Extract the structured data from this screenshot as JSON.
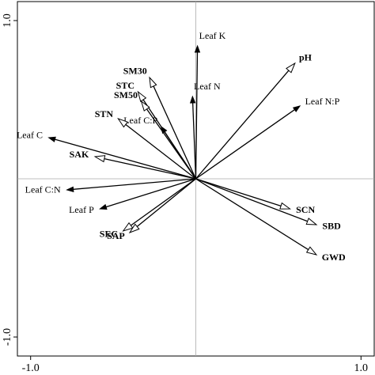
{
  "chart_data": {
    "type": "biplot",
    "xlim": [
      -1.08,
      1.08
    ],
    "ylim": [
      -1.12,
      1.12
    ],
    "xticks": [
      {
        "value": -1,
        "label": "-1.0"
      },
      {
        "value": 1,
        "label": "1.0"
      }
    ],
    "yticks": [
      {
        "value": -1,
        "label": "-1.0"
      },
      {
        "value": 1,
        "label": "1.0"
      }
    ],
    "zero_lines": true,
    "series": [
      {
        "arrowhead": "filled",
        "bold": false,
        "color": "#000000",
        "labels": [
          "Leaf K",
          "Leaf N:P",
          "Leaf N",
          "Leaf C:P",
          "Leaf C",
          "Leaf C:N",
          "Leaf P"
        ],
        "x": [
          0.01,
          0.63,
          -0.02,
          -0.21,
          -0.89,
          -0.78,
          -0.58
        ],
        "y": [
          0.84,
          0.46,
          0.52,
          0.33,
          0.26,
          -0.07,
          -0.19
        ]
      },
      {
        "arrowhead": "open",
        "bold": true,
        "color": "#000000",
        "labels": [
          "pH",
          "SM30",
          "STC",
          "SM50",
          "STN",
          "SAK",
          "SEC",
          "SAP",
          "SCN",
          "SBD",
          "GWD"
        ],
        "x": [
          0.6,
          -0.28,
          -0.35,
          -0.33,
          -0.47,
          -0.61,
          -0.44,
          -0.4,
          0.57,
          0.73,
          0.73
        ],
        "y": [
          0.73,
          0.64,
          0.55,
          0.49,
          0.38,
          0.14,
          -0.33,
          -0.34,
          -0.19,
          -0.29,
          -0.48
        ]
      }
    ]
  }
}
